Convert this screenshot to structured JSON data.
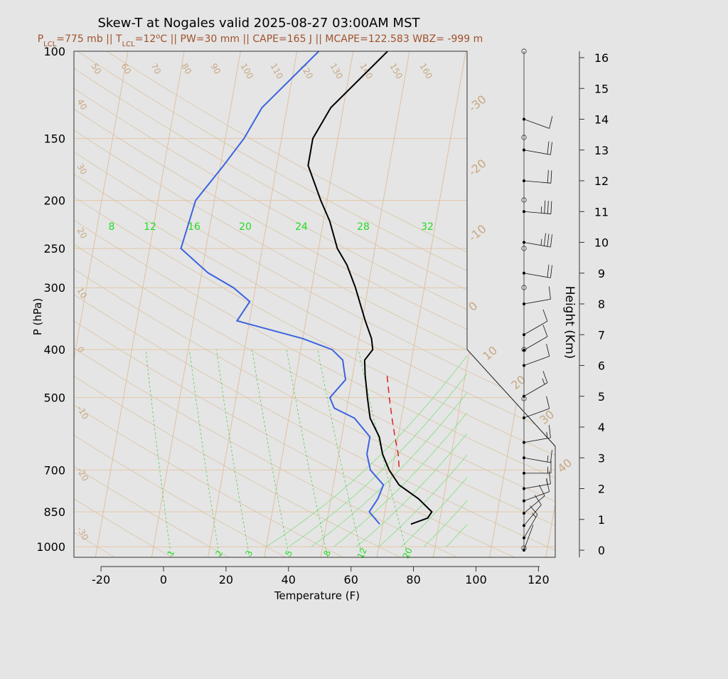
{
  "chart_data": {
    "type": "line",
    "title": "Skew-T at Nogales valid 2025-08-27 03:00AM MST",
    "subtitle": {
      "parts": [
        {
          "text": "P",
          "sub": false
        },
        {
          "text": "LCL",
          "sub": true
        },
        {
          "text": "=775 mb || T",
          "sub": false
        },
        {
          "text": "LCL",
          "sub": true
        },
        {
          "text": "=12",
          "sub": false
        },
        {
          "text": "o",
          "sup": true
        },
        {
          "text": "C || PW=30 mm || CAPE=165 J || MCAPE=122.583 WBZ= -999 m",
          "sub": false
        }
      ]
    },
    "xlabel": "Temperature (F)",
    "ylabel": "P (hPa)",
    "y2label": "Height (Km)",
    "xlim": [
      -28,
      125
    ],
    "ylim_hpa": [
      1050,
      100
    ],
    "x_ticks": [
      "-20",
      "0",
      "20",
      "40",
      "60",
      "80",
      "100",
      "120"
    ],
    "x_tick_values": [
      -20,
      0,
      20,
      40,
      60,
      80,
      100,
      120
    ],
    "p_ticks": [
      "100",
      "150",
      "200",
      "250",
      "300",
      "400",
      "500",
      "700",
      "850",
      "1000"
    ],
    "p_tick_values": [
      100,
      150,
      200,
      250,
      300,
      400,
      500,
      700,
      850,
      1000
    ],
    "height_ticks": [
      "0",
      "1",
      "2",
      "3",
      "4",
      "5",
      "6",
      "7",
      "8",
      "9",
      "10",
      "11",
      "12",
      "13",
      "14",
      "15",
      "16"
    ],
    "height_tick_values": [
      0,
      1,
      2,
      3,
      4,
      5,
      6,
      7,
      8,
      9,
      10,
      11,
      12,
      13,
      14,
      15,
      16
    ],
    "isotherm_labels": [
      "-30",
      "-20",
      "-10",
      "0",
      "10",
      "20",
      "30",
      "40",
      "50",
      "60",
      "70",
      "80",
      "90",
      "100",
      "110",
      "120",
      "130",
      "140",
      "150",
      "160",
      "-30",
      "-20",
      "-10",
      "0",
      "10",
      "20",
      "30",
      "40"
    ],
    "isotherms_c": [
      -30,
      -20,
      -10,
      0,
      10,
      20,
      30,
      40,
      50,
      60,
      70,
      80,
      90,
      100,
      110,
      120,
      130,
      140,
      150,
      160
    ],
    "moist_adiabat_labels": [
      "8",
      "12",
      "16",
      "20",
      "24",
      "28",
      "32"
    ],
    "moist_adiabat_label_values": [
      8,
      12,
      16,
      20,
      24,
      28,
      32
    ],
    "mixing_ratio_labels": [
      "1",
      "2",
      "3",
      "5",
      "8",
      "12",
      "20"
    ],
    "mixing_ratio_values": [
      1,
      2,
      3,
      5,
      8,
      12,
      20
    ],
    "series": [
      {
        "color": "#000000",
        "p": [
          900,
          875,
          850,
          800,
          750,
          700,
          650,
          600,
          550,
          500,
          450,
          420,
          400,
          380,
          350,
          300,
          270,
          250,
          220,
          200,
          170,
          150,
          130,
          100
        ],
        "temperature_f": [
          77,
          82,
          83,
          78,
          71,
          67,
          64,
          62,
          58,
          56,
          54,
          53,
          55,
          54,
          51,
          46,
          42,
          38,
          34,
          30,
          24,
          24,
          28,
          43
        ]
      },
      {
        "color": "#3b63e0",
        "p": [
          900,
          850,
          800,
          750,
          700,
          650,
          600,
          550,
          525,
          500,
          460,
          440,
          420,
          400,
          380,
          350,
          320,
          300,
          280,
          250,
          200,
          170,
          150,
          130,
          100
        ],
        "temperature_f": [
          67,
          63,
          65,
          66,
          61,
          59,
          59,
          53,
          46,
          44,
          48,
          47,
          46,
          42,
          32,
          10,
          13,
          7,
          -2,
          -12,
          -10,
          -3,
          2,
          6,
          21
        ]
      },
      {
        "color": "#dd2222",
        "dashed": true,
        "p": [
          690,
          650,
          600,
          550,
          500,
          450
        ],
        "temperature_f": [
          70,
          69,
          67,
          65,
          63,
          61
        ]
      }
    ],
    "wind_profile": [
      {
        "km": 0.0,
        "speed_kt": 3,
        "dir": 200
      },
      {
        "km": 0.4,
        "speed_kt": 5,
        "dir": 210
      },
      {
        "km": 0.8,
        "speed_kt": 10,
        "dir": 220
      },
      {
        "km": 1.2,
        "speed_kt": 10,
        "dir": 230
      },
      {
        "km": 1.6,
        "speed_kt": 10,
        "dir": 250
      },
      {
        "km": 2.0,
        "speed_kt": 5,
        "dir": 260
      },
      {
        "km": 2.5,
        "speed_kt": 5,
        "dir": 270
      },
      {
        "km": 3.0,
        "speed_kt": 5,
        "dir": 280
      },
      {
        "km": 3.5,
        "speed_kt": 5,
        "dir": 260
      },
      {
        "km": 4.3,
        "speed_kt": 10,
        "dir": 250
      },
      {
        "km": 5.0,
        "speed_kt": 5,
        "dir": 240
      },
      {
        "km": 6.0,
        "speed_kt": 10,
        "dir": 250
      },
      {
        "km": 6.5,
        "speed_kt": 10,
        "dir": 240
      },
      {
        "km": 7.0,
        "speed_kt": 10,
        "dir": 240
      },
      {
        "km": 8.0,
        "speed_kt": 10,
        "dir": 260
      },
      {
        "km": 9.0,
        "speed_kt": 20,
        "dir": 280
      },
      {
        "km": 10.0,
        "speed_kt": 25,
        "dir": 280
      },
      {
        "km": 11.0,
        "speed_kt": 25,
        "dir": 275
      },
      {
        "km": 12.0,
        "speed_kt": 20,
        "dir": 275
      },
      {
        "km": 13.0,
        "speed_kt": 20,
        "dir": 280
      },
      {
        "km": 14.0,
        "speed_kt": 10,
        "dir": 290
      }
    ],
    "grid": true
  }
}
